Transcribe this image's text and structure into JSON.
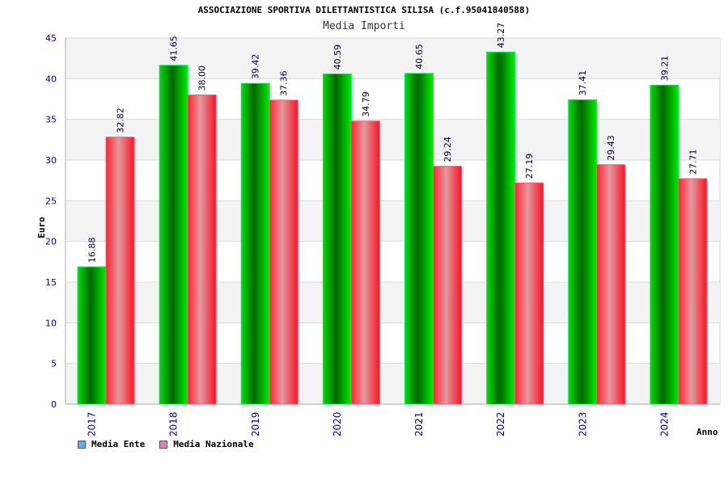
{
  "chart_data": {
    "type": "bar",
    "title": "ASSOCIAZIONE SPORTIVA DILETTANTISTICA SILISA (c.f.95041840588)",
    "subtitle": "Media Importi",
    "xlabel": "Anno",
    "ylabel": "Euro",
    "ylim": [
      0,
      45
    ],
    "yticks": [
      "0",
      "5",
      "10",
      "15",
      "20",
      "25",
      "30",
      "35",
      "40",
      "45"
    ],
    "categories": [
      "2017",
      "2018",
      "2019",
      "2020",
      "2021",
      "2022",
      "2023",
      "2024"
    ],
    "series": [
      {
        "name": "Media Ente",
        "values": [
          16.88,
          41.65,
          39.42,
          40.59,
          40.65,
          43.27,
          37.41,
          39.21
        ],
        "labels": [
          "16.88",
          "41.65",
          "39.42",
          "40.59",
          "40.65",
          "43.27",
          "37.41",
          "39.21"
        ],
        "color": "#00cc00"
      },
      {
        "name": "Media Nazionale",
        "values": [
          32.82,
          38.0,
          37.36,
          34.79,
          29.24,
          27.19,
          29.43,
          27.71
        ],
        "labels": [
          "32.82",
          "38.00",
          "37.36",
          "34.79",
          "29.24",
          "27.19",
          "29.43",
          "27.71"
        ],
        "color": "#ee1122"
      }
    ],
    "legend": {
      "position": "bottom-left",
      "swatch_colors": [
        "#66aaee",
        "#dd88bb"
      ]
    },
    "grid": true,
    "band_color": "#f3f3f3",
    "axis_text_color": "#000099"
  }
}
